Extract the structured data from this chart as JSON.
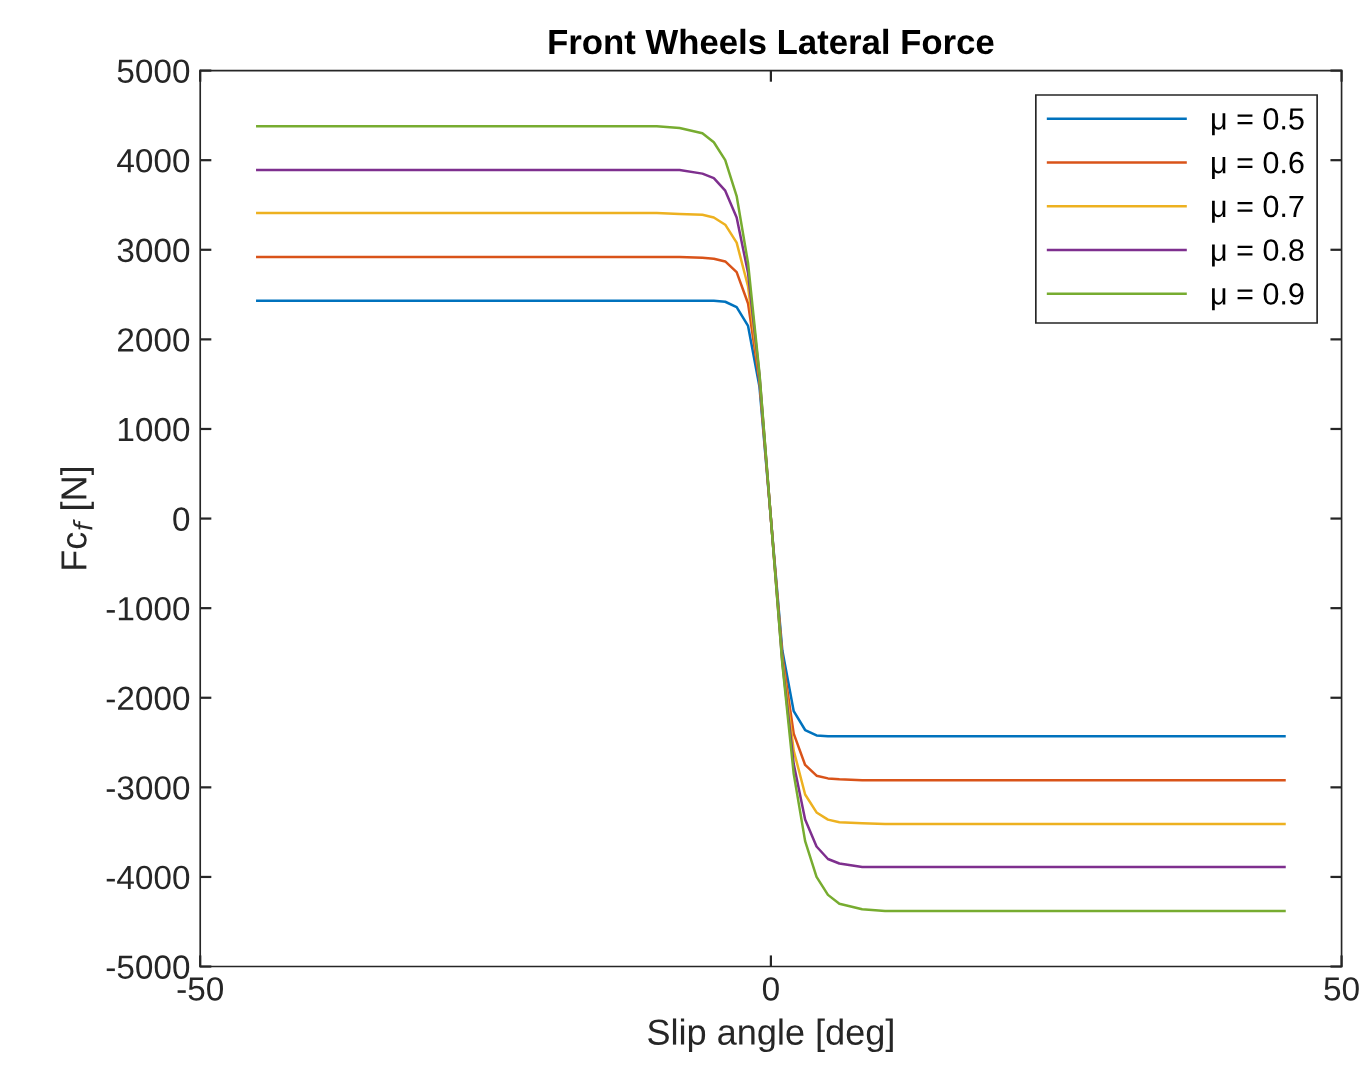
{
  "chart_data": {
    "type": "line",
    "title": "Front Wheels Lateral Force",
    "xlabel": "Slip angle [deg]",
    "ylabel": "Fc$_{f}$ [N]",
    "x": [
      -45,
      -10,
      -8,
      -6,
      -5,
      -4,
      -3,
      -2,
      -1,
      0,
      1,
      2,
      3,
      4,
      5,
      6,
      8,
      10,
      45
    ],
    "series": [
      {
        "name": "μ = 0.5",
        "color": "#0072bd",
        "values": [
          2430,
          2430,
          2430,
          2430,
          2430,
          2420,
          2360,
          2150,
          1470,
          0,
          -1470,
          -2150,
          -2360,
          -2420,
          -2430,
          -2430,
          -2430,
          -2430,
          -2430
        ]
      },
      {
        "name": "μ = 0.6",
        "color": "#d95319",
        "values": [
          2920,
          2920,
          2920,
          2910,
          2900,
          2870,
          2750,
          2400,
          1530,
          0,
          -1530,
          -2400,
          -2750,
          -2870,
          -2900,
          -2910,
          -2920,
          -2920,
          -2920
        ]
      },
      {
        "name": "μ = 0.7",
        "color": "#edb120",
        "values": [
          3410,
          3410,
          3400,
          3390,
          3360,
          3280,
          3080,
          2590,
          1570,
          0,
          -1570,
          -2590,
          -3080,
          -3280,
          -3360,
          -3390,
          -3400,
          -3410,
          -3410
        ]
      },
      {
        "name": "μ = 0.8",
        "color": "#7e2f8e",
        "values": [
          3890,
          3890,
          3890,
          3850,
          3800,
          3660,
          3360,
          2740,
          1600,
          0,
          -1600,
          -2740,
          -3360,
          -3660,
          -3800,
          -3850,
          -3890,
          -3890,
          -3890
        ]
      },
      {
        "name": "μ = 0.9",
        "color": "#77ac30",
        "values": [
          4380,
          4380,
          4360,
          4300,
          4200,
          4000,
          3600,
          2850,
          1620,
          0,
          -1620,
          -2850,
          -3600,
          -4000,
          -4200,
          -4300,
          -4360,
          -4380,
          -4380
        ]
      }
    ],
    "xlim": [
      -50,
      50
    ],
    "xticks": [
      -50,
      0,
      50
    ],
    "ylim": [
      -5000,
      5000
    ],
    "yticks": [
      -5000,
      -4000,
      -3000,
      -2000,
      -1000,
      0,
      1000,
      2000,
      3000,
      4000,
      5000
    ],
    "grid": false,
    "legend": "top right",
    "marker": "none",
    "line_style": "solid"
  }
}
